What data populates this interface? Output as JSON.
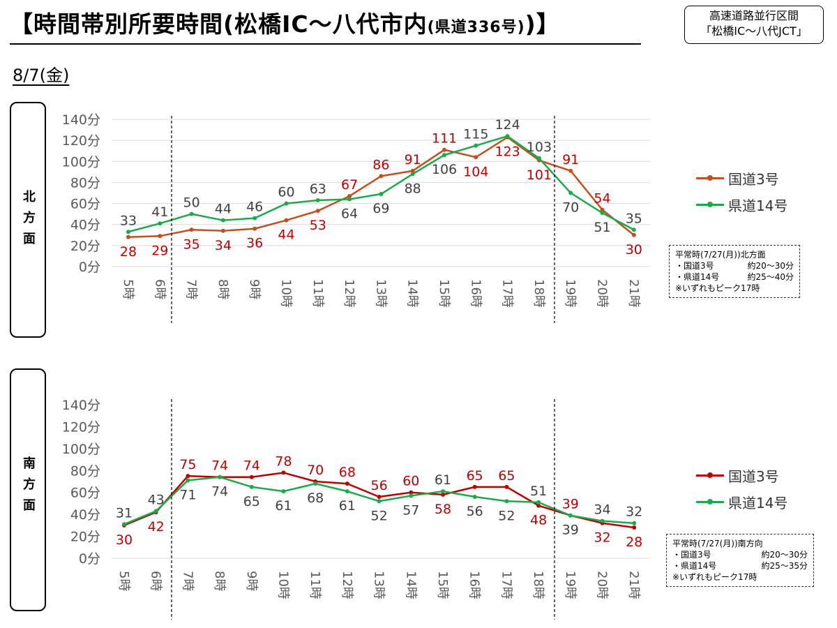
{
  "header": {
    "title_main": "【時間帯別所要時間(松橋IC～八代市内",
    "title_small": "(県道336号)",
    "title_end": ")】",
    "note_line1": "高速道路並行区間",
    "note_line2": "「松橋IC～八代JCT」",
    "date": "8/7(金)"
  },
  "north": {
    "dir_chars": [
      "北",
      "方",
      "面"
    ],
    "legend": [
      "国道3号",
      "県道14号"
    ],
    "normal": {
      "title": "平常時(7/27(月))北方面",
      "rows": [
        {
          "label": "・国道3号",
          "value": "約20～30分"
        },
        {
          "label": "・県道14号",
          "value": "約25～40分"
        }
      ],
      "foot": "※いずれもピーク17時"
    }
  },
  "south": {
    "dir_chars": [
      "南",
      "方",
      "面"
    ],
    "legend": [
      "国道3号",
      "県道14号"
    ],
    "normal": {
      "title": "平常時(7/27(月))南方向",
      "rows": [
        {
          "label": "・国道3号",
          "value": "約20～30分"
        },
        {
          "label": "・県道14号",
          "value": "約25～35分"
        }
      ],
      "foot": "※いずれもピーク17時"
    }
  },
  "chart_data": [
    {
      "type": "line",
      "categories": [
        "5時",
        "6時",
        "7時",
        "8時",
        "9時",
        "10時",
        "11時",
        "12時",
        "13時",
        "14時",
        "15時",
        "16時",
        "17時",
        "18時",
        "19時",
        "20時",
        "21時"
      ],
      "ylim": [
        0,
        140
      ],
      "yticks": [
        "0分",
        "20分",
        "40分",
        "60分",
        "80分",
        "100分",
        "120分",
        "140分"
      ],
      "grid": true,
      "legend_position": "right",
      "series": [
        {
          "name": "国道3号",
          "color": "#c0501e",
          "label_color": "#c00000",
          "values": [
            28,
            29,
            35,
            34,
            36,
            44,
            53,
            67,
            86,
            91,
            111,
            104,
            123,
            101,
            91,
            54,
            30
          ],
          "label_pos": [
            "below",
            "below",
            "below",
            "below",
            "below",
            "below",
            "below",
            "above",
            "above",
            "above",
            "above",
            "below",
            "below",
            "below",
            "above",
            "above",
            "below"
          ]
        },
        {
          "name": "県道14号",
          "color": "#1aaa4b",
          "label_color": "#404040",
          "values": [
            33,
            41,
            50,
            44,
            46,
            60,
            63,
            64,
            69,
            88,
            106,
            115,
            124,
            103,
            70,
            51,
            35
          ],
          "label_pos": [
            "above",
            "above",
            "above",
            "above",
            "above",
            "above",
            "above",
            "below",
            "below",
            "below",
            "below",
            "above",
            "above",
            "above",
            "below",
            "below",
            "above"
          ]
        }
      ]
    },
    {
      "type": "line",
      "categories": [
        "5時",
        "6時",
        "7時",
        "8時",
        "9時",
        "10時",
        "11時",
        "12時",
        "13時",
        "14時",
        "15時",
        "16時",
        "17時",
        "18時",
        "19時",
        "20時",
        "21時"
      ],
      "ylim": [
        0,
        140
      ],
      "yticks": [
        "0分",
        "20分",
        "40分",
        "60分",
        "80分",
        "100分",
        "120分",
        "140分"
      ],
      "grid": false,
      "legend_position": "right",
      "series": [
        {
          "name": "国道3号",
          "color": "#c00000",
          "label_color": "#c00000",
          "values": [
            30,
            42,
            75,
            74,
            74,
            78,
            70,
            68,
            56,
            60,
            58,
            65,
            65,
            48,
            39,
            32,
            28
          ],
          "label_pos": [
            "below",
            "below",
            "above",
            "above",
            "above",
            "above",
            "above",
            "above",
            "above",
            "above",
            "below",
            "above",
            "above",
            "below",
            "above",
            "below",
            "below"
          ]
        },
        {
          "name": "県道14号",
          "color": "#1aaa4b",
          "label_color": "#404040",
          "values": [
            31,
            43,
            71,
            74,
            65,
            61,
            68,
            61,
            52,
            57,
            61,
            56,
            52,
            51,
            39,
            34,
            32
          ],
          "label_pos": [
            "above",
            "above",
            "below",
            "below",
            "below",
            "below",
            "below",
            "below",
            "below",
            "below",
            "above",
            "below",
            "below",
            "above",
            "below",
            "above",
            "above"
          ]
        }
      ]
    }
  ]
}
